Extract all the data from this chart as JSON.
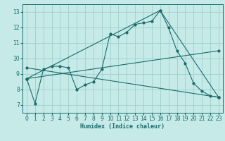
{
  "xlabel": "Humidex (Indice chaleur)",
  "bg_color": "#c5eae8",
  "grid_color": "#9ecfcc",
  "line_color": "#1a6b6b",
  "xlim": [
    -0.5,
    23.5
  ],
  "ylim": [
    6.5,
    13.5
  ],
  "xticks": [
    0,
    1,
    2,
    3,
    4,
    5,
    6,
    7,
    8,
    9,
    10,
    11,
    12,
    13,
    14,
    15,
    16,
    17,
    18,
    19,
    20,
    21,
    22,
    23
  ],
  "yticks": [
    7,
    8,
    9,
    10,
    11,
    12,
    13
  ],
  "series1_x": [
    0,
    1,
    2,
    3,
    4,
    5,
    6,
    7,
    8,
    9,
    10,
    11,
    12,
    13,
    14,
    15,
    16,
    17,
    18,
    19,
    20,
    21,
    22,
    23
  ],
  "series1_y": [
    8.7,
    7.1,
    9.3,
    9.5,
    9.5,
    9.4,
    8.0,
    8.3,
    8.5,
    9.3,
    11.6,
    11.4,
    11.7,
    12.2,
    12.3,
    12.4,
    13.1,
    12.0,
    10.5,
    9.7,
    8.4,
    7.9,
    7.6,
    7.5
  ],
  "series2_x": [
    0,
    16,
    23
  ],
  "series2_y": [
    8.7,
    13.1,
    7.5
  ],
  "series3_x": [
    0,
    23
  ],
  "series3_y": [
    8.7,
    10.5
  ],
  "series4_x": [
    0,
    23
  ],
  "series4_y": [
    9.4,
    7.5
  ],
  "xlabel_fontsize": 6,
  "tick_fontsize": 5.5
}
